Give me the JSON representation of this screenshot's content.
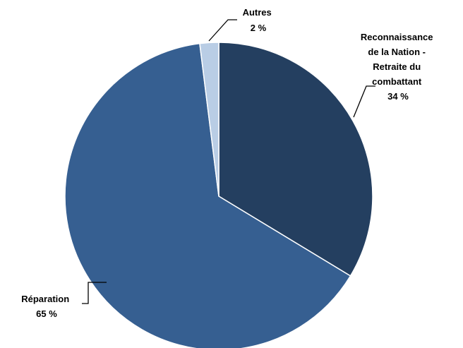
{
  "chart_data": {
    "type": "pie",
    "slices": [
      {
        "label": [
          "Reconnaissance",
          "de la Nation -",
          "Retraite du",
          "combattant"
        ],
        "value": 34,
        "value_label": "34 %",
        "color": "#243f60"
      },
      {
        "label": [
          "Réparation"
        ],
        "value": 65,
        "value_label": "65 %",
        "color": "#365f91"
      },
      {
        "label": [
          "Autres"
        ],
        "value": 2,
        "value_label": "2 %",
        "color": "#b9cde5"
      }
    ],
    "start": "12 o'clock",
    "direction": "clockwise",
    "legend": "none"
  }
}
